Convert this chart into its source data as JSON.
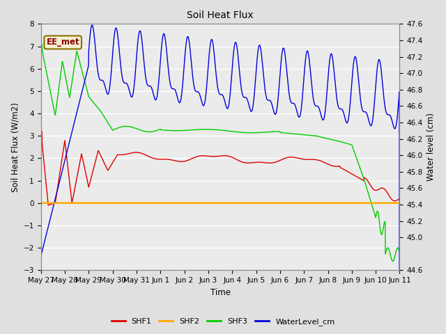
{
  "title": "Soil Heat Flux",
  "ylabel_left": "Soil Heat Flux (W/m2)",
  "ylabel_right": "Water level (cm)",
  "xlabel": "Time",
  "ylim_left": [
    -3.0,
    8.0
  ],
  "ylim_right": [
    44.6,
    47.6
  ],
  "legend_label_box": "EE_met",
  "legend_entries": [
    "SHF1",
    "SHF2",
    "SHF3",
    "WaterLevel_cm"
  ],
  "line_colors": {
    "SHF1": "#dd0000",
    "SHF2": "#ffaa00",
    "SHF3": "#00cc00",
    "WaterLevel_cm": "#0000dd"
  },
  "xtick_labels": [
    "May 27",
    "May 28",
    "May 29",
    "May 30",
    "May 31",
    "Jun 1",
    "Jun 2",
    "Jun 3",
    "Jun 4",
    "Jun 5",
    "Jun 6",
    "Jun 7",
    "Jun 8",
    "Jun 9",
    "Jun 10",
    "Jun 11"
  ],
  "yticks_left": [
    -3.0,
    -2.0,
    -1.0,
    0.0,
    1.0,
    2.0,
    3.0,
    4.0,
    5.0,
    6.0,
    7.0,
    8.0
  ],
  "yticks_right": [
    44.6,
    45.0,
    45.2,
    45.4,
    45.6,
    45.8,
    46.0,
    46.2,
    46.4,
    46.6,
    46.8,
    47.0,
    47.2,
    47.4,
    47.6
  ],
  "bg_color": "#e0e0e0",
  "plot_bg_color": "#ebebeb"
}
